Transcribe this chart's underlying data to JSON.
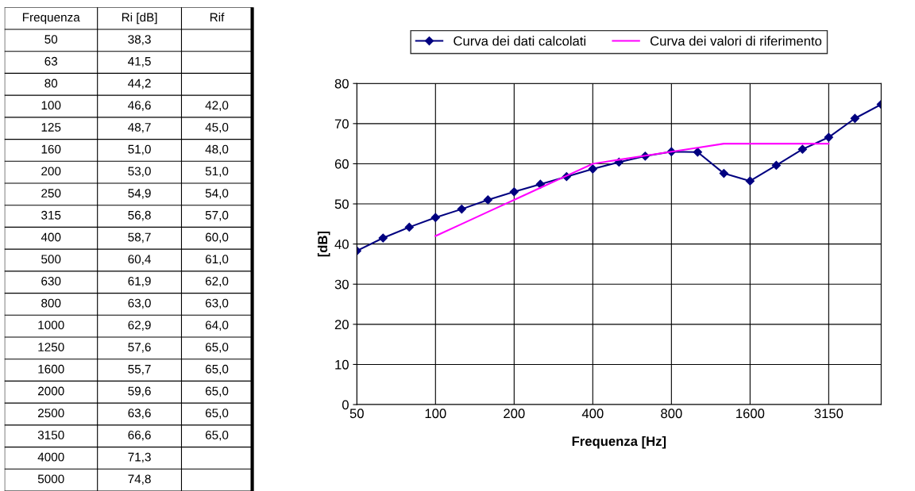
{
  "chart_data": [
    {
      "type": "other",
      "cells": [
        [
          "Frequenza",
          "Ri [dB]",
          "Rif"
        ],
        [
          "50",
          "38,3",
          null
        ],
        [
          "63",
          "41,5",
          null
        ],
        [
          "80",
          "44,2",
          null
        ],
        [
          "100",
          "46,6",
          "42,0"
        ],
        [
          "125",
          "48,7",
          "45,0"
        ],
        [
          "160",
          "51,0",
          "48,0"
        ],
        [
          "200",
          "53,0",
          "51,0"
        ],
        [
          "250",
          "54,9",
          "54,0"
        ],
        [
          "315",
          "56,8",
          "57,0"
        ],
        [
          "400",
          "58,7",
          "60,0"
        ],
        [
          "500",
          "60,4",
          "61,0"
        ],
        [
          "630",
          "61,9",
          "62,0"
        ],
        [
          "800",
          "63,0",
          "63,0"
        ],
        [
          "1000",
          "62,9",
          "64,0"
        ],
        [
          "1250",
          "57,6",
          "65,0"
        ],
        [
          "1600",
          "55,7",
          "65,0"
        ],
        [
          "2000",
          "59,6",
          "65,0"
        ],
        [
          "2500",
          "63,6",
          "65,0"
        ],
        [
          "3150",
          "66,6",
          "65,0"
        ],
        [
          "4000",
          "71,3",
          null
        ],
        [
          "5000",
          "74,8",
          null
        ]
      ]
    },
    {
      "type": "line",
      "categories": [
        "50",
        null,
        null,
        "100",
        null,
        null,
        "200",
        null,
        null,
        "400",
        null,
        null,
        "800",
        null,
        null,
        "1600",
        null,
        null,
        "3150",
        null,
        null
      ],
      "series": [
        {
          "name": "Curva dei dati calcolati",
          "color": "#000080",
          "marker": "diamond",
          "values": [
            38.3,
            41.5,
            44.2,
            46.6,
            48.7,
            51.0,
            53.0,
            54.9,
            56.8,
            58.7,
            60.4,
            61.9,
            63.0,
            62.9,
            57.6,
            55.7,
            59.6,
            63.6,
            66.6,
            71.3,
            74.8
          ]
        },
        {
          "name": "Curva dei valori di riferimento",
          "color": "#ff00ff",
          "marker": "none",
          "values": [
            null,
            null,
            null,
            42.0,
            45.0,
            48.0,
            51.0,
            54.0,
            57.0,
            60.0,
            61.0,
            62.0,
            63.0,
            64.0,
            65.0,
            65.0,
            65.0,
            65.0,
            65.0,
            null,
            null
          ]
        }
      ],
      "xlabel": "Frequenza [Hz]",
      "ylabel": "[dB]",
      "ylim": [
        0,
        80
      ],
      "yticks": [
        0,
        10,
        20,
        30,
        40,
        50,
        60,
        70,
        80
      ],
      "grid": true,
      "legend": "top"
    }
  ]
}
